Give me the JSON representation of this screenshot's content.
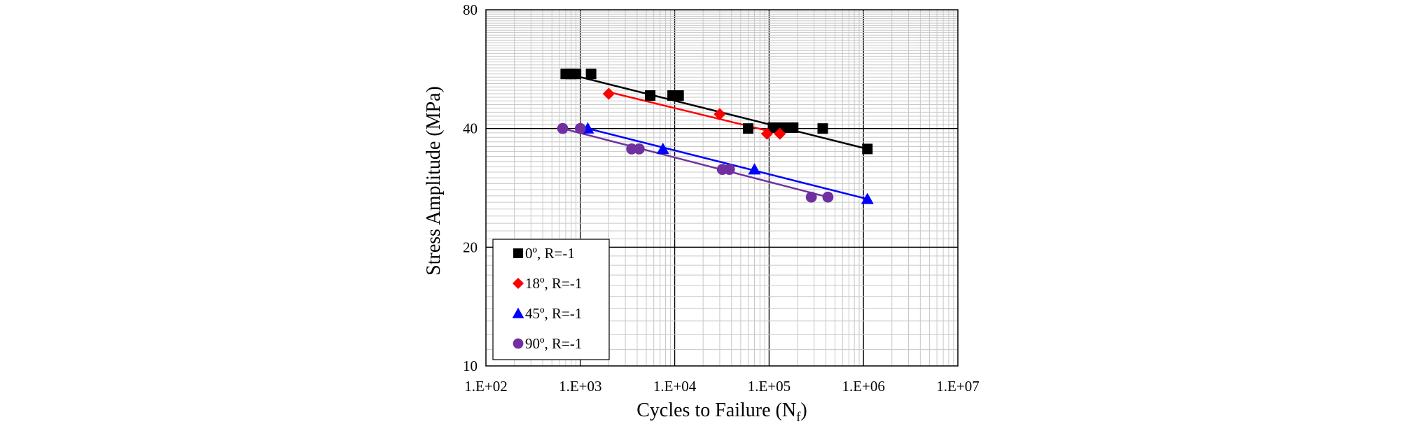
{
  "chart_data": {
    "type": "scatter",
    "title": "",
    "xlabel": "Cycles to Failure (N",
    "xlabel_sub": "f",
    "xlabel_close": ")",
    "ylabel": "Stress Amplitude (MPa)",
    "x_scale": "log",
    "y_scale": "log",
    "xlim": [
      100,
      10000000
    ],
    "ylim": [
      10,
      80
    ],
    "x_ticks": [
      100,
      1000,
      10000,
      100000,
      1000000,
      10000000
    ],
    "x_tick_labels": [
      "1.E+02",
      "1.E+03",
      "1.E+04",
      "1.E+05",
      "1.E+06",
      "1.E+07"
    ],
    "y_ticks": [
      10,
      20,
      40,
      80
    ],
    "y_tick_labels": [
      "10",
      "20",
      "40",
      "80"
    ],
    "grid": true,
    "legend_position": "bottom-left",
    "series": [
      {
        "name": "0º, R=-1",
        "color": "#000000",
        "marker": "square",
        "points": [
          [
            700,
            55
          ],
          [
            800,
            55
          ],
          [
            900,
            55
          ],
          [
            1300,
            55
          ],
          [
            5500,
            48.5
          ],
          [
            9500,
            48.5
          ],
          [
            11000,
            48.5
          ],
          [
            60000,
            40
          ],
          [
            110000,
            40.2
          ],
          [
            140000,
            40.2
          ],
          [
            180000,
            40.2
          ],
          [
            370000,
            40
          ],
          [
            1100000,
            35.5
          ]
        ],
        "fit": [
          [
            1000,
            54
          ],
          [
            1100000,
            35.5
          ]
        ]
      },
      {
        "name": "18º, R=-1",
        "color": "#ff0000",
        "marker": "diamond",
        "points": [
          [
            2000,
            49
          ],
          [
            30000,
            43.5
          ],
          [
            95000,
            38.8
          ],
          [
            130000,
            38.8
          ]
        ],
        "fit": [
          [
            2000,
            49.5
          ],
          [
            130000,
            38.8
          ]
        ]
      },
      {
        "name": "45º, R=-1",
        "color": "#0000ff",
        "marker": "triangle",
        "points": [
          [
            1200,
            40
          ],
          [
            7500,
            35.5
          ],
          [
            70000,
            31.5
          ],
          [
            1100000,
            26.5
          ]
        ],
        "fit": [
          [
            1200,
            40
          ],
          [
            1100000,
            26.5
          ]
        ]
      },
      {
        "name": "90º, R=-1",
        "color": "#7030a0",
        "marker": "circle",
        "points": [
          [
            650,
            40
          ],
          [
            1000,
            40
          ],
          [
            3500,
            35.5
          ],
          [
            4200,
            35.5
          ],
          [
            32000,
            31.5
          ],
          [
            38000,
            31.5
          ],
          [
            280000,
            26.8
          ],
          [
            420000,
            26.8
          ]
        ],
        "fit": [
          [
            650,
            40
          ],
          [
            420000,
            26.8
          ]
        ]
      }
    ]
  }
}
